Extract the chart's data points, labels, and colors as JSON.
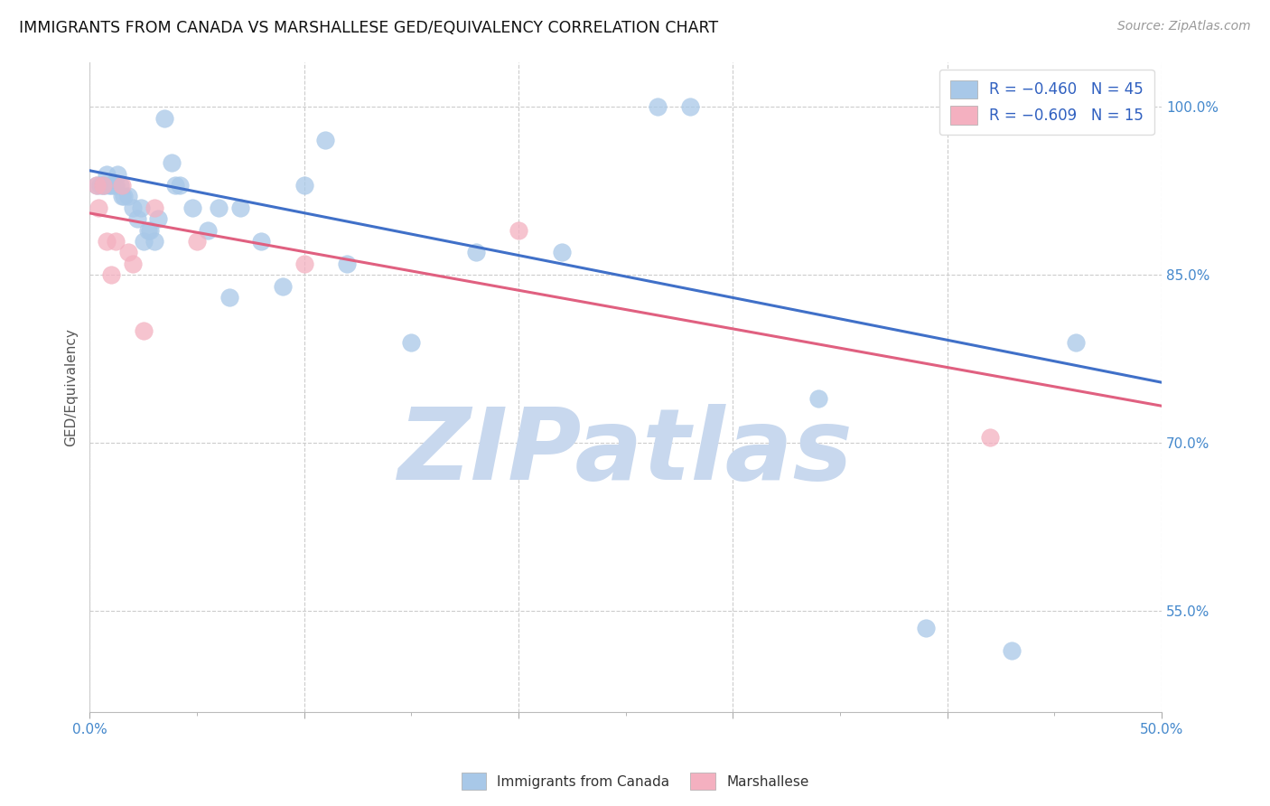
{
  "title": "IMMIGRANTS FROM CANADA VS MARSHALLESE GED/EQUIVALENCY CORRELATION CHART",
  "source": "Source: ZipAtlas.com",
  "ylabel": "GED/Equivalency",
  "xmin": 0.0,
  "xmax": 0.5,
  "ymin": 0.46,
  "ymax": 1.04,
  "ytick_labels": [
    "55.0%",
    "70.0%",
    "85.0%",
    "100.0%"
  ],
  "ytick_values": [
    0.55,
    0.7,
    0.85,
    1.0
  ],
  "xtick_labels": [
    "0.0%",
    "",
    "",
    "",
    "",
    "50.0%"
  ],
  "xtick_values": [
    0.0,
    0.1,
    0.2,
    0.3,
    0.4,
    0.5
  ],
  "xtick_minor_values": [
    0.05,
    0.15,
    0.25,
    0.35,
    0.45
  ],
  "legend_blue_label": "R = −0.460   N = 45",
  "legend_pink_label": "R = −0.609   N = 15",
  "legend_bottom_blue": "Immigrants from Canada",
  "legend_bottom_pink": "Marshallese",
  "blue_color": "#A8C8E8",
  "pink_color": "#F4B0C0",
  "trendline_blue": "#4070C8",
  "trendline_pink": "#E06080",
  "blue_scatter_x": [
    0.003,
    0.005,
    0.006,
    0.007,
    0.008,
    0.009,
    0.01,
    0.011,
    0.012,
    0.013,
    0.014,
    0.015,
    0.016,
    0.018,
    0.02,
    0.022,
    0.024,
    0.025,
    0.027,
    0.028,
    0.03,
    0.032,
    0.035,
    0.038,
    0.04,
    0.042,
    0.048,
    0.055,
    0.06,
    0.065,
    0.07,
    0.08,
    0.09,
    0.1,
    0.11,
    0.12,
    0.15,
    0.18,
    0.22,
    0.265,
    0.28,
    0.34,
    0.39,
    0.43,
    0.46
  ],
  "blue_scatter_y": [
    0.93,
    0.93,
    0.93,
    0.93,
    0.94,
    0.93,
    0.93,
    0.93,
    0.93,
    0.94,
    0.93,
    0.92,
    0.92,
    0.92,
    0.91,
    0.9,
    0.91,
    0.88,
    0.89,
    0.89,
    0.88,
    0.9,
    0.99,
    0.95,
    0.93,
    0.93,
    0.91,
    0.89,
    0.91,
    0.83,
    0.91,
    0.88,
    0.84,
    0.93,
    0.97,
    0.86,
    0.79,
    0.87,
    0.87,
    1.0,
    1.0,
    0.74,
    0.535,
    0.515,
    0.79
  ],
  "pink_scatter_x": [
    0.003,
    0.004,
    0.006,
    0.008,
    0.01,
    0.012,
    0.015,
    0.018,
    0.02,
    0.025,
    0.03,
    0.05,
    0.1,
    0.2,
    0.42
  ],
  "pink_scatter_y": [
    0.93,
    0.91,
    0.93,
    0.88,
    0.85,
    0.88,
    0.93,
    0.87,
    0.86,
    0.8,
    0.91,
    0.88,
    0.86,
    0.89,
    0.705
  ],
  "blue_trendline_x": [
    0.0,
    0.5
  ],
  "blue_trendline_y": [
    0.943,
    0.754
  ],
  "pink_trendline_x": [
    0.0,
    0.5
  ],
  "pink_trendline_y": [
    0.905,
    0.733
  ],
  "watermark_zip": "ZIP",
  "watermark_atlas": "atlas",
  "watermark_color": "#C8D8EE",
  "background_color": "#FFFFFF",
  "grid_color": "#CCCCCC"
}
